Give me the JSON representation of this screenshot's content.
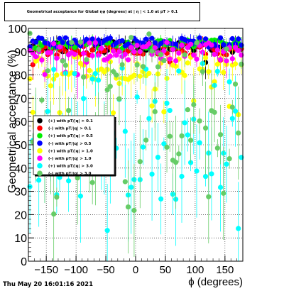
{
  "title": "Geometrical acceptance for Global ηφ (degrees) at | η | < 1.0 at pT > 0.1",
  "timestamp": "Thu May 20 16:01:16 2021",
  "chart_data": {
    "type": "scatter",
    "title": "Geometrical acceptance for Global ηφ (degrees) at | η | < 1.0 at pT > 0.1",
    "xlabel": "ϕ (degrees)",
    "ylabel": "Geometrical acceptance (%)",
    "xlim": [
      -180,
      180
    ],
    "ylim": [
      0,
      100
    ],
    "xticks": [
      -150,
      -100,
      -50,
      0,
      50,
      100,
      150
    ],
    "yticks": [
      0,
      10,
      20,
      30,
      40,
      50,
      60,
      70,
      80,
      90,
      100
    ],
    "grid": true,
    "legend_position": "left-middle",
    "series": [
      {
        "name": "(+) with pT/|q| > 0.1",
        "color": "#000000",
        "marker": "circle",
        "base": 92,
        "spread": 2.5,
        "outlier_rate": 0.04,
        "outlier_low": 85
      },
      {
        "name": "(-) with pT/|q| > 0.1",
        "color": "#ff0000",
        "marker": "circle",
        "base": 91,
        "spread": 2.5,
        "outlier_rate": 0.05,
        "outlier_low": 83
      },
      {
        "name": "(+) with pT/|q| > 0.5",
        "color": "#00ee00",
        "marker": "circle",
        "base": 93,
        "spread": 2,
        "outlier_rate": 0.04,
        "outlier_low": 86
      },
      {
        "name": "(-) with pT/|q| > 0.5",
        "color": "#0000ff",
        "marker": "circle",
        "base": 94,
        "spread": 2,
        "outlier_rate": 0.04,
        "outlier_low": 88
      },
      {
        "name": "(+) with pT/|q| > 1.0",
        "color": "#ffff00",
        "marker": "circle",
        "base": 83,
        "spread": 5,
        "outlier_rate": 0.25,
        "outlier_low": 60
      },
      {
        "name": "(-) with pT/|q| > 1.0",
        "color": "#ff00ff",
        "marker": "circle",
        "base": 90,
        "spread": 4,
        "outlier_rate": 0.12,
        "outlier_low": 80
      },
      {
        "name": "(+) with pT/|q| > 3.0",
        "color": "#00ffff",
        "marker": "circle",
        "base": 55,
        "spread": 30,
        "outlier_rate": 0.3,
        "outlier_low": 12
      },
      {
        "name": "(-) with pT/|q| > 3.0",
        "color": "#66cc66",
        "marker": "circle",
        "base": 70,
        "spread": 28,
        "outlier_rate": 0.3,
        "outlier_low": 20
      }
    ]
  }
}
